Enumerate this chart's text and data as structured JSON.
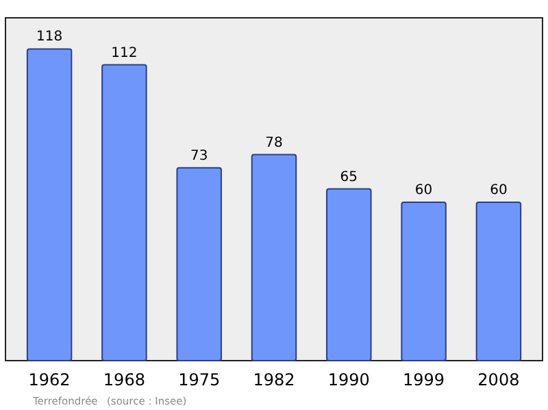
{
  "chart_data": {
    "type": "bar",
    "categories": [
      "1962",
      "1968",
      "1975",
      "1982",
      "1990",
      "1999",
      "2008"
    ],
    "values": [
      118,
      112,
      73,
      78,
      65,
      60,
      60
    ],
    "color": "#6f97fb",
    "data_labels": true,
    "annotations": [
      "Terrefondrée",
      "(source : Insee)"
    ]
  }
}
